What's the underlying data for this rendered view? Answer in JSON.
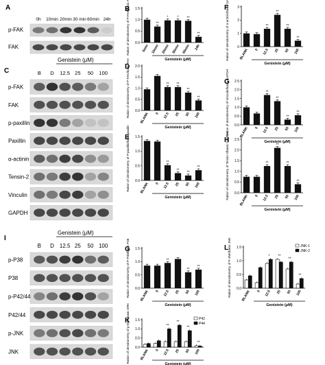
{
  "blots": {
    "A": {
      "letter": "A",
      "time_labels": [
        "0h",
        "10min",
        "20min",
        "30 min",
        "60min",
        "24h"
      ],
      "rows": [
        {
          "label": "p-FAK",
          "intensity": [
            0.55,
            0.6,
            0.9,
            0.9,
            0.7,
            0.15
          ]
        },
        {
          "label": "FAK",
          "intensity": [
            0.8,
            0.8,
            0.8,
            0.8,
            0.8,
            0.8
          ]
        }
      ]
    },
    "C": {
      "letter": "C",
      "treatment": "Genistein (μM)",
      "lanes": [
        "B",
        "D",
        "12.5",
        "25",
        "50",
        "100"
      ],
      "rows": [
        {
          "label": "p-FAK",
          "intensity": [
            0.7,
            0.9,
            0.75,
            0.7,
            0.55,
            0.35
          ]
        },
        {
          "label": "FAK",
          "intensity": [
            0.75,
            0.75,
            0.75,
            0.75,
            0.75,
            0.75
          ]
        },
        {
          "label": "p-paxillin",
          "intensity": [
            0.9,
            0.9,
            0.55,
            0.35,
            0.2,
            0.2
          ]
        },
        {
          "label": "Paxillin",
          "intensity": [
            0.8,
            0.8,
            0.8,
            0.8,
            0.8,
            0.8
          ]
        },
        {
          "label": "α-actinin",
          "intensity": [
            0.7,
            0.6,
            0.85,
            0.8,
            0.45,
            0.4
          ]
        },
        {
          "label": "Tensin-2",
          "intensity": [
            0.6,
            0.55,
            0.85,
            0.9,
            0.35,
            0.5
          ]
        },
        {
          "label": "Vinculin",
          "intensity": [
            0.6,
            0.55,
            0.8,
            0.85,
            0.35,
            0.45
          ]
        },
        {
          "label": "GAPDH",
          "intensity": [
            0.8,
            0.8,
            0.8,
            0.8,
            0.8,
            0.8
          ]
        }
      ]
    },
    "I": {
      "letter": "I",
      "treatment": "Genistein (μM)",
      "lanes": [
        "B",
        "D",
        "12.5",
        "25",
        "50",
        "100"
      ],
      "rows": [
        {
          "label": "p-P38",
          "intensity": [
            0.7,
            0.75,
            0.85,
            0.9,
            0.6,
            0.7
          ]
        },
        {
          "label": "P38",
          "intensity": [
            0.75,
            0.75,
            0.75,
            0.75,
            0.75,
            0.75
          ]
        },
        {
          "label": "p-P42/44",
          "intensity": [
            0.5,
            0.6,
            0.85,
            0.9,
            0.75,
            0.35
          ]
        },
        {
          "label": "P42/44",
          "intensity": [
            0.8,
            0.8,
            0.8,
            0.8,
            0.8,
            0.8
          ]
        },
        {
          "label": "p-JNK",
          "intensity": [
            0.55,
            0.6,
            0.75,
            0.8,
            0.6,
            0.55
          ]
        },
        {
          "label": "JNK",
          "intensity": [
            0.75,
            0.75,
            0.75,
            0.75,
            0.75,
            0.75
          ]
        }
      ]
    }
  },
  "chart_data": [
    {
      "letter": "B",
      "type": "bar",
      "ylabel": "Ration of densitometry of P-FAK/basic FAK",
      "categories": [
        "0min",
        "10min",
        "20min",
        "30min",
        "60min",
        "24h"
      ],
      "values": [
        1.0,
        0.7,
        0.97,
        0.97,
        0.95,
        0.25
      ],
      "sig": [
        "",
        "**",
        "*",
        "*",
        "**",
        "**"
      ],
      "ylim": [
        0,
        1.5
      ],
      "ticks": [
        "0.0",
        "0.5",
        "1.0",
        "1.5"
      ],
      "xlabel": "Genistein (μM)"
    },
    {
      "letter": "D",
      "type": "bar",
      "ylabel": "Ration of densitometry of P-FAK/basic FAK",
      "categories": [
        "BLANK",
        "0",
        "12.5",
        "25",
        "50",
        "100"
      ],
      "values": [
        0.95,
        1.55,
        1.05,
        1.05,
        0.8,
        0.45
      ],
      "sig": [
        "",
        "",
        "**",
        "**",
        "**",
        "**"
      ],
      "ylim": [
        0,
        2.0
      ],
      "ticks": [
        "0.0",
        "0.5",
        "1.0",
        "1.5",
        "2.0"
      ],
      "xlabel": "Genistein (μM)"
    },
    {
      "letter": "E",
      "type": "bar",
      "ylabel": "Ration of densitometry of P-paxillin/basic paxilin",
      "categories": [
        "BLANK",
        "0",
        "12.5",
        "25",
        "50",
        "100"
      ],
      "values": [
        1.35,
        1.33,
        0.52,
        0.25,
        0.17,
        0.35
      ],
      "sig": [
        "",
        "",
        "**",
        "**",
        "**",
        "**"
      ],
      "ylim": [
        0,
        1.5
      ],
      "ticks": [
        "0.0",
        "0.5",
        "1.0",
        "1.5"
      ],
      "xlabel": "Genistein (μM)"
    },
    {
      "letter": "F",
      "type": "bar",
      "ylabel": "Ration of densitometry of α-actinin/basic GAPDH",
      "categories": [
        "BLANK",
        "0",
        "12.5",
        "25",
        "50",
        "100"
      ],
      "values": [
        1.0,
        0.95,
        1.35,
        2.4,
        1.35,
        0.45
      ],
      "sig": [
        "",
        "",
        "**",
        "**",
        "**",
        "**"
      ],
      "ylim": [
        0,
        3.0
      ],
      "ticks": [
        "0",
        "1",
        "2",
        "3"
      ],
      "xlabel": "Genistein (μM)"
    },
    {
      "letter": "G",
      "type": "bar",
      "ylabel": "Ration of densitometry of Vinculin/basic GAPDH",
      "categories": [
        "BLANK",
        "0",
        "12.5",
        "25",
        "50",
        "100"
      ],
      "values": [
        1.0,
        0.65,
        1.7,
        1.35,
        0.3,
        0.55
      ],
      "sig": [
        "",
        "",
        "**",
        "**",
        "**",
        "**"
      ],
      "ylim": [
        0,
        2.5
      ],
      "ticks": [
        "0.0",
        "0.5",
        "1.0",
        "1.5",
        "2.0",
        "2.5"
      ],
      "xlabel": "Genistein (μM)"
    },
    {
      "letter": "H",
      "type": "bar",
      "ylabel": "Ration of densitometry of Tensin-2/basic GAPDH",
      "categories": [
        "BLANK",
        "0",
        "12.5",
        "25",
        "50",
        "100"
      ],
      "values": [
        0.75,
        0.75,
        1.25,
        2.1,
        1.25,
        0.4
      ],
      "sig": [
        "",
        "",
        "**",
        "**",
        "**",
        "**"
      ],
      "ylim": [
        0,
        2.5
      ],
      "ticks": [
        "0.0",
        "0.5",
        "1.0",
        "1.5",
        "2.0",
        "2.5"
      ],
      "xlabel": "Genistein (μM)"
    },
    {
      "letter": "G",
      "type": "bar",
      "ylabel": "Ration of densitometry of P-P38/basic P38",
      "categories": [
        "BLANK",
        "0",
        "12.5",
        "25",
        "50",
        "100"
      ],
      "values": [
        0.85,
        0.85,
        0.95,
        1.1,
        0.6,
        0.7
      ],
      "sig": [
        "",
        "",
        "**",
        "",
        "**",
        "**"
      ],
      "ylim": [
        0,
        1.5
      ],
      "ticks": [
        "0.0",
        "0.5",
        "1.0",
        "1.5"
      ],
      "xlabel": "Genistein (μM)"
    },
    {
      "letter": "K",
      "type": "bar",
      "ylabel": "Ration of densitometry of p-ERK/basic ERK",
      "categories": [
        "BLANK",
        "0",
        "12.5",
        "25",
        "50",
        "100"
      ],
      "series": [
        {
          "name": "P42",
          "values": [
            0.15,
            0.2,
            0.3,
            0.3,
            0.3,
            0.08
          ]
        },
        {
          "name": "P44",
          "values": [
            0.2,
            0.35,
            1.0,
            1.2,
            0.9,
            0.06
          ]
        }
      ],
      "sig": [
        "",
        "",
        "**",
        "**",
        "**",
        "**"
      ],
      "ylim": [
        0,
        1.5
      ],
      "ticks": [
        "0.0",
        "0.5",
        "1.0",
        "1.5"
      ],
      "xlabel": "Genistein (μM)"
    },
    {
      "letter": "L",
      "type": "bar",
      "ylabel": "Ration of densitometry of P-JNK/basic JNK",
      "categories": [
        "BLANK",
        "0",
        "12.5",
        "25",
        "50",
        "100"
      ],
      "series": [
        {
          "name": "JNK-1",
          "values": [
            0.3,
            0.2,
            0.9,
            1.05,
            0.7,
            0.15
          ]
        },
        {
          "name": "JNK-2",
          "values": [
            0.45,
            0.75,
            1.05,
            0.95,
            0.95,
            0.35
          ]
        }
      ],
      "sig": [
        "",
        "",
        "*",
        "**",
        "**",
        "**"
      ],
      "ylim": [
        0,
        1.5
      ],
      "ticks": [
        "0.0",
        "0.5",
        "1.0",
        "1.5"
      ],
      "xlabel": "Genistein (μM)"
    }
  ]
}
